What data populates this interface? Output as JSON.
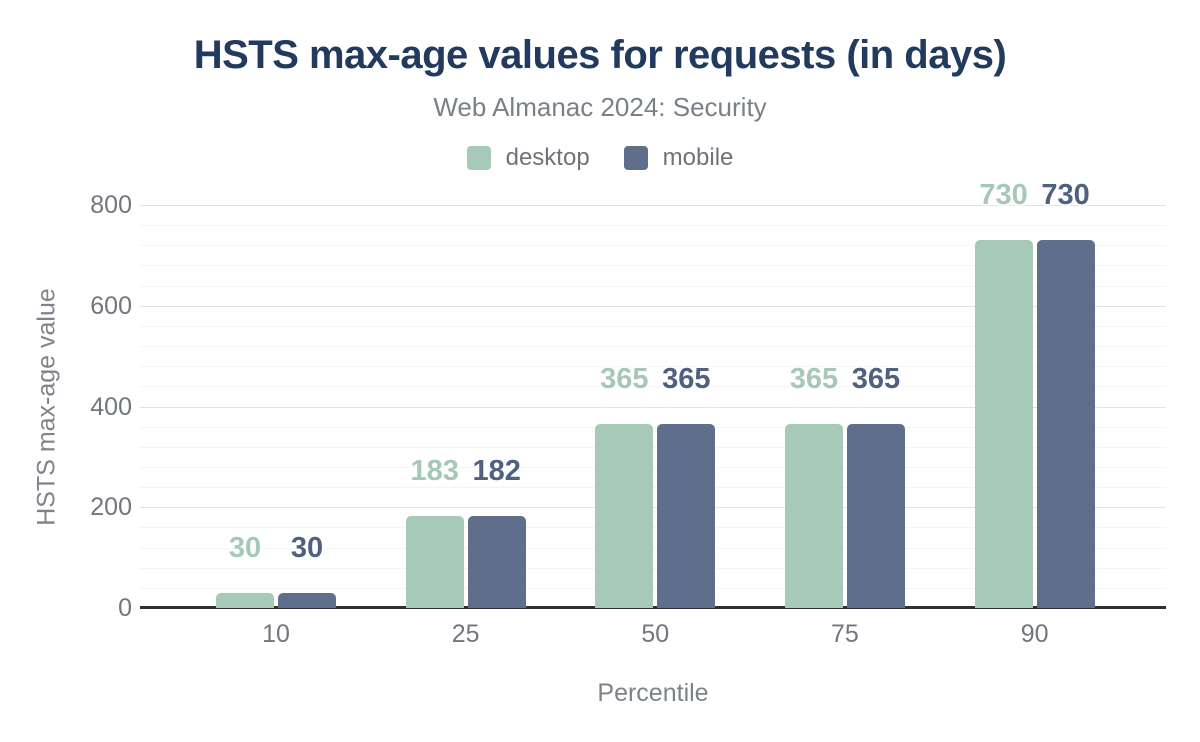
{
  "chart_data": {
    "type": "bar",
    "title": "HSTS max-age values for requests (in days)",
    "subtitle": "Web Almanac 2024: Security",
    "xlabel": "Percentile",
    "ylabel": "HSTS max-age value",
    "categories": [
      "10",
      "25",
      "50",
      "75",
      "90"
    ],
    "series": [
      {
        "name": "desktop",
        "values": [
          30,
          183,
          365,
          365,
          730
        ],
        "color": "#a7c9b8",
        "label_color": "#a6c8b6"
      },
      {
        "name": "mobile",
        "values": [
          30,
          182,
          365,
          365,
          730
        ],
        "color": "#5f6e8a",
        "label_color": "#4f6080"
      }
    ],
    "ylim": [
      0,
      800
    ],
    "yticks": [
      0,
      200,
      400,
      600,
      800
    ],
    "minor_grid_step": 40,
    "grid": true,
    "legend_position": "top",
    "colors": {
      "title": "#213a5e",
      "subtitle": "#7a8087",
      "legend_text": "#6e737a",
      "tick_text": "#72767d",
      "axis_title_text": "#7e838b",
      "axis_line": "#303030",
      "gridline_minor": "#f4f4f4",
      "gridline_major": "#e3e3e5",
      "background": "#ffffff"
    }
  }
}
